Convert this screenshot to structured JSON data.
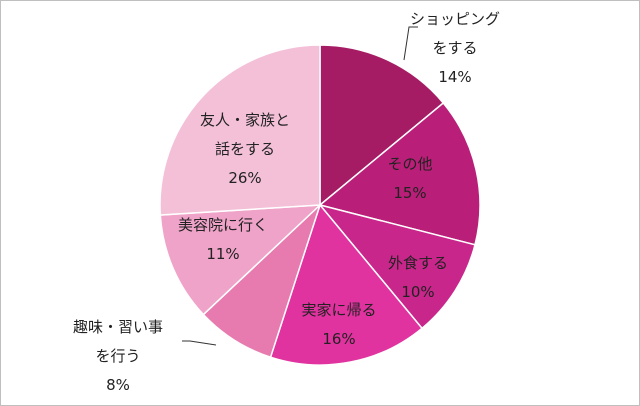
{
  "chart_data": {
    "type": "pie",
    "title": "",
    "slices": [
      {
        "lines": [
          "ショッピング",
          "をする"
        ],
        "percent_label": "14%",
        "value": 14,
        "color": "#a51c64"
      },
      {
        "lines": [
          "その他"
        ],
        "percent_label": "15%",
        "value": 15,
        "color": "#b91f78"
      },
      {
        "lines": [
          "外食する"
        ],
        "percent_label": "10%",
        "value": 10,
        "color": "#c9268b"
      },
      {
        "lines": [
          "実家に帰る"
        ],
        "percent_label": "16%",
        "value": 16,
        "color": "#e0339f"
      },
      {
        "lines": [
          "趣味・習い事",
          "を行う"
        ],
        "percent_label": "8%",
        "value": 8,
        "color": "#e77aae"
      },
      {
        "lines": [
          "美容院に行く"
        ],
        "percent_label": "11%",
        "value": 11,
        "color": "#efa3c9"
      },
      {
        "lines": [
          "友人・家族と",
          "話をする"
        ],
        "percent_label": "26%",
        "value": 26,
        "color": "#f3c0d8"
      }
    ]
  }
}
